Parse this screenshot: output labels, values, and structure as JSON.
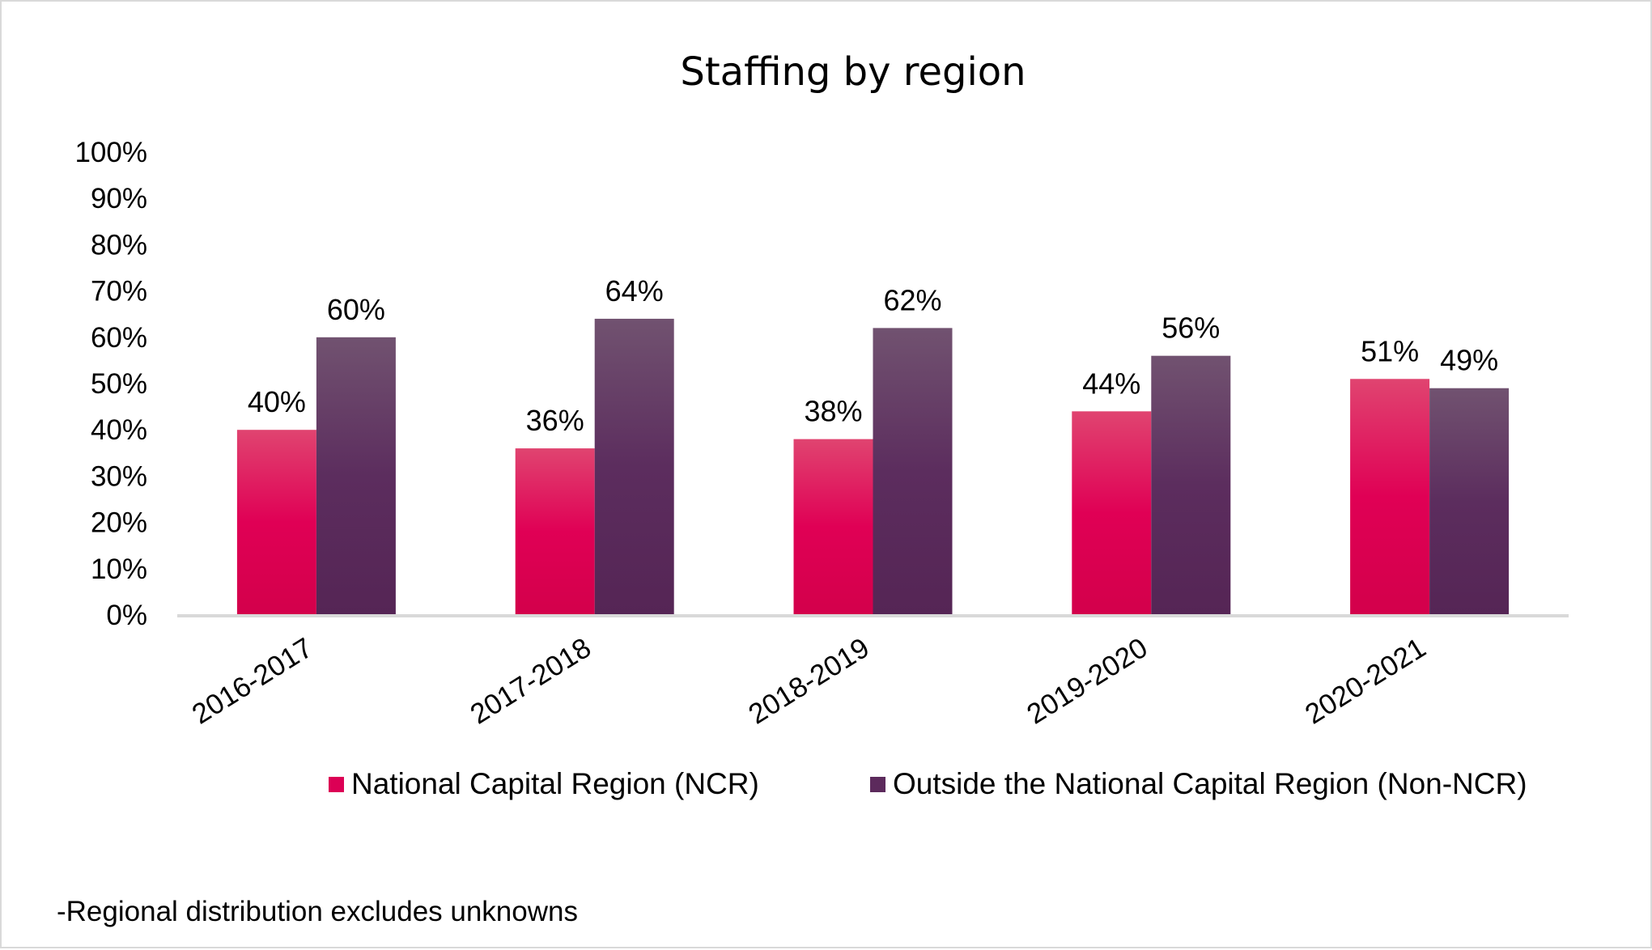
{
  "chart_data": {
    "type": "bar",
    "title": "Staffing by region",
    "categories": [
      "2016-2017",
      "2017-2018",
      "2018-2019",
      "2019-2020",
      "2020-2021"
    ],
    "series": [
      {
        "name": "National Capital Region (NCR)",
        "values": [
          40,
          36,
          38,
          44,
          51
        ],
        "labels": [
          "40%",
          "36%",
          "38%",
          "44%",
          "51%"
        ],
        "color": "#dc0055"
      },
      {
        "name": "Outside the National Capital Region (Non-NCR)",
        "values": [
          60,
          64,
          62,
          56,
          49
        ],
        "labels": [
          "60%",
          "64%",
          "62%",
          "56%",
          "49%"
        ],
        "color": "#5c2a5c"
      }
    ],
    "ylim": [
      0,
      100
    ],
    "yticks": [
      "0%",
      "10%",
      "20%",
      "30%",
      "40%",
      "50%",
      "60%",
      "70%",
      "80%",
      "90%",
      "100%"
    ],
    "grid": false,
    "legend": "bottom",
    "footnote": "-Regional distribution excludes unknowns"
  }
}
